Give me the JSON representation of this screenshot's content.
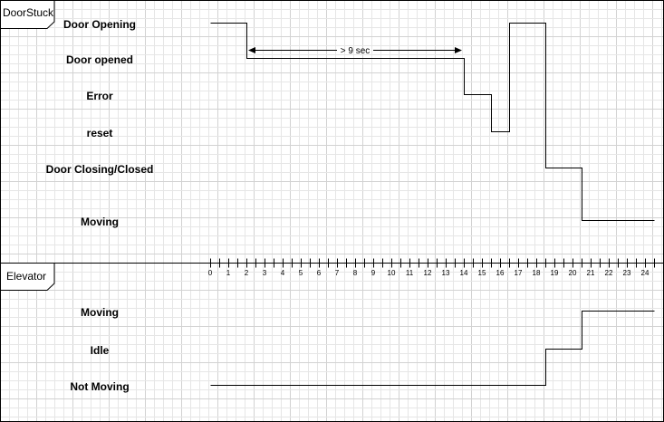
{
  "lifelines": [
    {
      "name": "DoorStuck",
      "states": [
        "Door Opening",
        "Door opened",
        "Error",
        "reset",
        "Door Closing/Closed",
        "Moving"
      ],
      "transitions": [
        {
          "time": 0,
          "state": "Door Opening"
        },
        {
          "time": 2,
          "state": "Door opened"
        },
        {
          "time": 14,
          "state": "Error"
        },
        {
          "time": 15.5,
          "state": "reset"
        },
        {
          "time": 16.5,
          "state": "Door Opening"
        },
        {
          "time": 18.5,
          "state": "Door Closing/Closed"
        },
        {
          "time": 20.5,
          "state": "Moving"
        }
      ],
      "end_time": 24.5
    },
    {
      "name": "Elevator",
      "states": [
        "Moving",
        "Idle",
        "Not Moving"
      ],
      "transitions": [
        {
          "time": 0,
          "state": "Not Moving"
        },
        {
          "time": 18.5,
          "state": "Idle"
        },
        {
          "time": 20.5,
          "state": "Moving"
        }
      ],
      "end_time": 24.5
    }
  ],
  "timeline": {
    "ticks": [
      "0",
      "1",
      "2",
      "3",
      "4",
      "5",
      "6",
      "7",
      "8",
      "9",
      "10",
      "11",
      "12",
      "13",
      "14",
      "15",
      "16",
      "17",
      "18",
      "19",
      "20",
      "21",
      "22",
      "23",
      "24"
    ]
  },
  "duration_constraint": {
    "from": 2,
    "to": 14,
    "label": "> 9 sec"
  }
}
